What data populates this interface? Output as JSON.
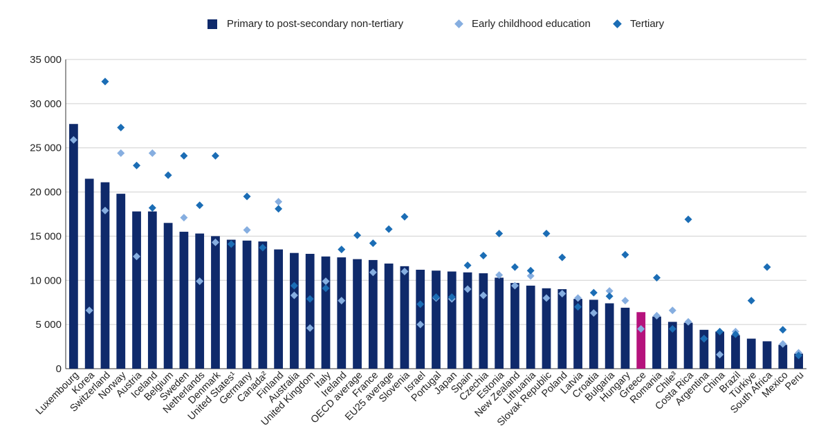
{
  "chart_data": {
    "type": "bar",
    "title": "",
    "xlabel": "",
    "ylabel": "",
    "ylim": [
      0,
      35000
    ],
    "yticks": [
      0,
      5000,
      10000,
      15000,
      20000,
      25000,
      30000,
      35000
    ],
    "ytick_labels": [
      "0",
      "5 000",
      "10 000",
      "15 000",
      "20 000",
      "25 000",
      "30 000",
      "35 000"
    ],
    "grid": true,
    "legend_position": "top-center",
    "categories": [
      "Luxembourg",
      "Korea",
      "Switzerland",
      "Norway",
      "Austria",
      "Iceland",
      "Belgium",
      "Sweden",
      "Netherlands",
      "Denmark",
      "United States¹",
      "Germany",
      "Canada²",
      "Finland",
      "Australia",
      "United Kingdom",
      "Italy",
      "Ireland",
      "OECD average",
      "France",
      "EU25 average",
      "Slovenia",
      "Israel",
      "Portugal",
      "Japan",
      "Spain",
      "Czechia",
      "Estonia",
      "New Zealand",
      "Lithuania",
      "Slovak Republic",
      "Poland",
      "Latvia",
      "Croatia",
      "Bulgaria",
      "Hungary",
      "Greece",
      "Romania",
      "Chile³",
      "Costa Rica",
      "Argentina",
      "China",
      "Brazil",
      "Türkiye",
      "South Africa",
      "Mexico",
      "Peru"
    ],
    "highlight_category": "Greece",
    "series": [
      {
        "name": "Primary to post-secondary non-tertiary",
        "kind": "bar",
        "color": "#0f2a6b",
        "values": [
          27700,
          21500,
          21100,
          19800,
          17800,
          17800,
          16500,
          15500,
          15300,
          15000,
          14600,
          14500,
          14400,
          13500,
          13100,
          13000,
          12700,
          12600,
          12400,
          12300,
          11900,
          11600,
          11200,
          11100,
          11000,
          10900,
          10800,
          10300,
          9700,
          9400,
          9100,
          9000,
          7900,
          7800,
          7400,
          6900,
          6400,
          5900,
          5300,
          5200,
          4400,
          4200,
          3800,
          3400,
          3100,
          2700,
          1700
        ]
      },
      {
        "name": "Early childhood education",
        "kind": "diamond",
        "color": "#86aee0",
        "values": [
          25900,
          6600,
          17900,
          24400,
          12700,
          24400,
          null,
          17100,
          9900,
          14300,
          null,
          15700,
          null,
          18900,
          8300,
          4600,
          9900,
          7700,
          null,
          10900,
          null,
          11000,
          5000,
          8000,
          7900,
          9000,
          8300,
          10600,
          9400,
          10500,
          8000,
          8500,
          8000,
          6300,
          8800,
          7700,
          4500,
          6000,
          6600,
          5300,
          3400,
          1600,
          4200,
          null,
          null,
          2800,
          1800
        ]
      },
      {
        "name": "Tertiary",
        "kind": "diamond",
        "color": "#1b6db5",
        "values": [
          null,
          null,
          32500,
          27300,
          23000,
          18200,
          21900,
          24100,
          18500,
          24100,
          14100,
          19500,
          13700,
          18100,
          9400,
          7900,
          9100,
          13500,
          15100,
          14200,
          15800,
          17200,
          7300,
          8100,
          8100,
          11700,
          12800,
          15300,
          11500,
          11100,
          15300,
          12600,
          7000,
          8600,
          8200,
          12900,
          null,
          10300,
          4500,
          16900,
          3400,
          4200,
          3900,
          7700,
          11500,
          4400,
          1500
        ]
      }
    ]
  }
}
